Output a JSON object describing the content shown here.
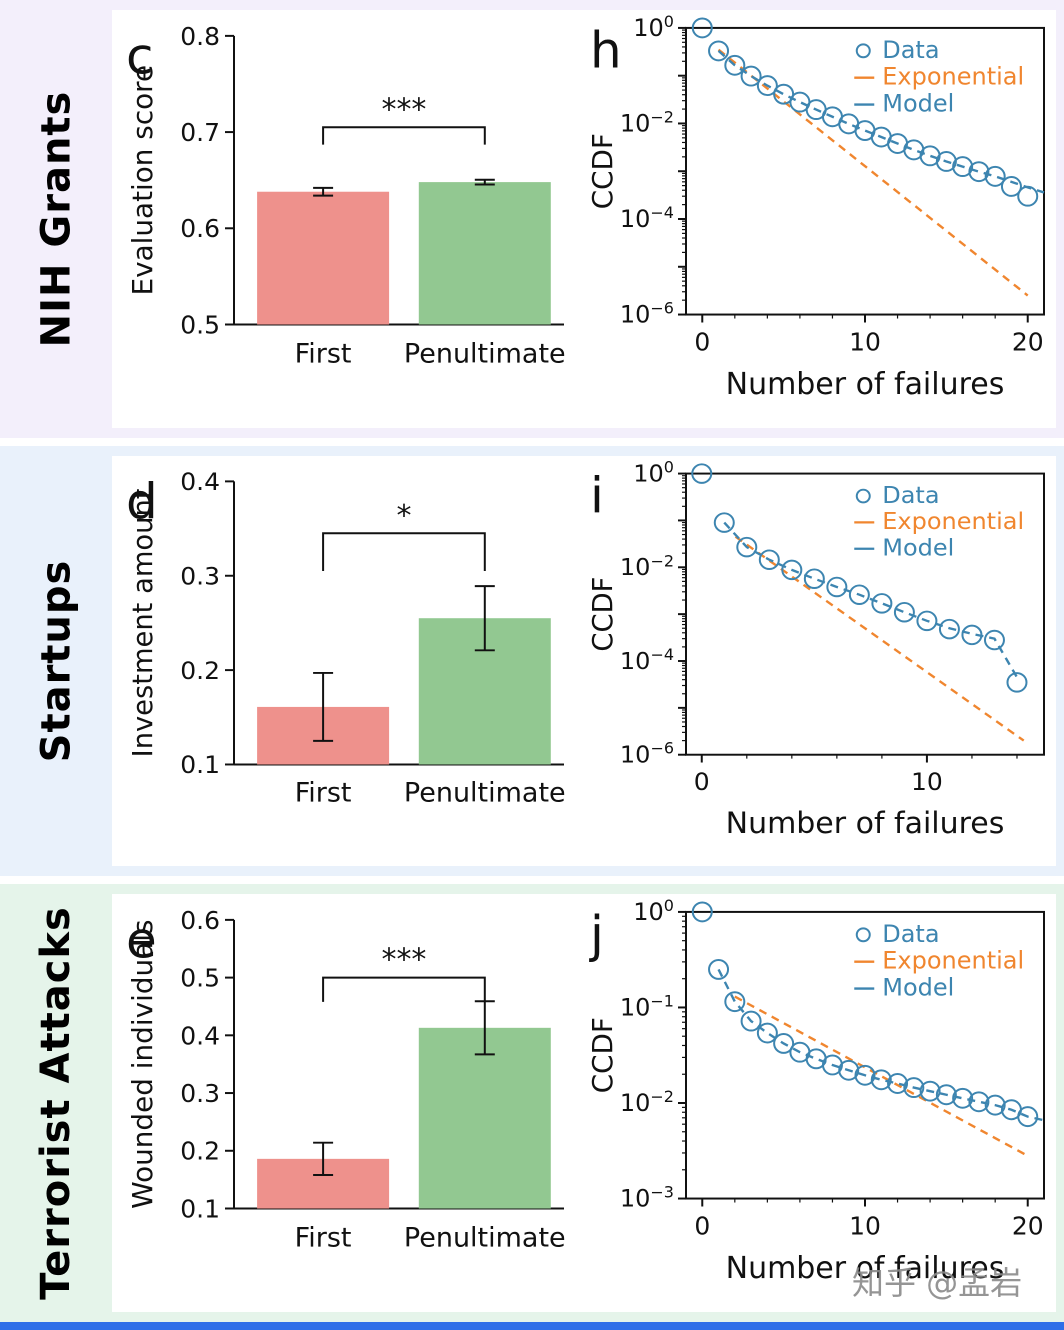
{
  "page": {
    "row_labels": [
      "NIH Grants",
      "Startups",
      "Terrorist Attacks"
    ],
    "row_bg": [
      "#f3effb",
      "#e9f1fb",
      "#e5f4ea"
    ],
    "bottom_bar_color": "#2f6fe8",
    "watermark": "知乎 @孟岩",
    "colors": {
      "bar_first": "#ee918c",
      "bar_penultimate": "#92c891",
      "data_blue": "#3d85b0",
      "exponential_orange": "#f0862f",
      "text": "#111111"
    }
  },
  "chart_data": [
    {
      "id": "c",
      "type": "bar",
      "ylabel": "Evaluation score",
      "ylim": [
        0.5,
        0.8
      ],
      "yticks": [
        0.5,
        0.6,
        0.7,
        0.8
      ],
      "categories": [
        "First",
        "Penultimate"
      ],
      "values": [
        0.638,
        0.648
      ],
      "errors": [
        0.004,
        0.0025
      ],
      "bar_colors": [
        "#ee918c",
        "#92c891"
      ],
      "significance": {
        "label": "***",
        "y": 0.705,
        "drop": 0.018
      }
    },
    {
      "id": "h",
      "type": "line",
      "xlabel": "Number of failures",
      "ylabel": "CCDF",
      "xlim": [
        -1,
        21
      ],
      "xticks": [
        0,
        10,
        20
      ],
      "ylim_exp": [
        -6,
        0
      ],
      "ytick_exps": [
        0,
        -2,
        -4,
        -6
      ],
      "legend": [
        "Data",
        "Exponential",
        "Model"
      ],
      "series": [
        {
          "name": "Data",
          "style": "circles",
          "color": "#3d85b0",
          "x": [
            0,
            1,
            2,
            3,
            4,
            5,
            6,
            7,
            8,
            9,
            10,
            11,
            12,
            13,
            14,
            15,
            16,
            17,
            18,
            19,
            20
          ],
          "y": [
            1.0,
            0.33,
            0.165,
            0.098,
            0.062,
            0.041,
            0.028,
            0.0195,
            0.0138,
            0.0098,
            0.0071,
            0.0052,
            0.0038,
            0.0028,
            0.0021,
            0.0016,
            0.00125,
            0.00098,
            0.00078,
            0.00048,
            0.0003
          ]
        },
        {
          "name": "Exponential",
          "style": "dashed",
          "color": "#f0862f",
          "x": [
            1,
            20
          ],
          "y": [
            0.35,
            2.5e-06
          ]
        },
        {
          "name": "Model",
          "style": "dashed",
          "color": "#3d85b0",
          "x": [
            1,
            2,
            3,
            4,
            5,
            6,
            7,
            8,
            9,
            10,
            11,
            12,
            13,
            14,
            15,
            16,
            17,
            18,
            19,
            20,
            21
          ],
          "y": [
            0.33,
            0.165,
            0.098,
            0.062,
            0.041,
            0.028,
            0.0195,
            0.0138,
            0.0098,
            0.0071,
            0.0052,
            0.0038,
            0.0028,
            0.0021,
            0.0016,
            0.00125,
            0.00098,
            0.00078,
            0.0006,
            0.00046,
            0.00036
          ]
        }
      ]
    },
    {
      "id": "d",
      "type": "bar",
      "ylabel": "Investment amount",
      "ylim": [
        0.1,
        0.4
      ],
      "yticks": [
        0.1,
        0.2,
        0.3,
        0.4
      ],
      "categories": [
        "First",
        "Penultimate"
      ],
      "values": [
        0.161,
        0.255
      ],
      "errors": [
        0.036,
        0.034
      ],
      "bar_colors": [
        "#ee918c",
        "#92c891"
      ],
      "significance": {
        "label": "*",
        "y": 0.345,
        "drop": 0.04
      }
    },
    {
      "id": "i",
      "type": "line",
      "xlabel": "Number of failures",
      "ylabel": "CCDF",
      "xlim": [
        -0.7,
        15.2
      ],
      "xticks": [
        0,
        10
      ],
      "ylim_exp": [
        -6,
        0
      ],
      "ytick_exps": [
        0,
        -2,
        -4,
        -6
      ],
      "legend": [
        "Data",
        "Exponential",
        "Model"
      ],
      "series": [
        {
          "name": "Data",
          "style": "circles",
          "color": "#3d85b0",
          "x": [
            0,
            1,
            2,
            3,
            4,
            5,
            6,
            7,
            8,
            9,
            10,
            11,
            12,
            13,
            14
          ],
          "y": [
            1.0,
            0.09,
            0.027,
            0.0145,
            0.0088,
            0.0057,
            0.0038,
            0.0026,
            0.0017,
            0.0011,
            0.00072,
            0.00048,
            0.00036,
            0.00028,
            3.5e-05
          ]
        },
        {
          "name": "Exponential",
          "style": "dashed",
          "color": "#f0862f",
          "x": [
            1.5,
            14.3
          ],
          "y": [
            0.045,
            2e-06
          ]
        },
        {
          "name": "Model",
          "style": "dashed",
          "color": "#3d85b0",
          "x": [
            1,
            2,
            3,
            4,
            5,
            6,
            7,
            8,
            9,
            10,
            11,
            12,
            13,
            14
          ],
          "y": [
            0.09,
            0.027,
            0.0145,
            0.0088,
            0.0057,
            0.0038,
            0.0026,
            0.0017,
            0.0011,
            0.00072,
            0.0005,
            0.00038,
            0.0003,
            4.5e-05
          ]
        }
      ]
    },
    {
      "id": "e",
      "type": "bar",
      "ylabel": "Wounded individuals",
      "ylim": [
        0.1,
        0.6
      ],
      "yticks": [
        0.1,
        0.2,
        0.3,
        0.4,
        0.5,
        0.6
      ],
      "categories": [
        "First",
        "Penultimate"
      ],
      "values": [
        0.186,
        0.413
      ],
      "errors": [
        0.028,
        0.046
      ],
      "bar_colors": [
        "#ee918c",
        "#92c891"
      ],
      "significance": {
        "label": "***",
        "y": 0.5,
        "drop": 0.042
      }
    },
    {
      "id": "j",
      "type": "line",
      "xlabel": "Number of failures",
      "ylabel": "CCDF",
      "xlim": [
        -1,
        21
      ],
      "xticks": [
        0,
        10,
        20
      ],
      "ylim_exp": [
        -3,
        0
      ],
      "ytick_exps": [
        0,
        -1,
        -2,
        -3
      ],
      "legend": [
        "Data",
        "Exponential",
        "Model"
      ],
      "series": [
        {
          "name": "Data",
          "style": "circles",
          "color": "#3d85b0",
          "x": [
            0,
            1,
            2,
            3,
            4,
            5,
            6,
            7,
            8,
            9,
            10,
            11,
            12,
            13,
            14,
            15,
            16,
            17,
            18,
            19,
            20
          ],
          "y": [
            1.0,
            0.25,
            0.115,
            0.072,
            0.054,
            0.042,
            0.034,
            0.029,
            0.025,
            0.022,
            0.0195,
            0.0175,
            0.016,
            0.0145,
            0.0133,
            0.0122,
            0.0112,
            0.0103,
            0.0095,
            0.0085,
            0.0072
          ]
        },
        {
          "name": "Exponential",
          "style": "dashed",
          "color": "#f0862f",
          "x": [
            2,
            20
          ],
          "y": [
            0.13,
            0.0028
          ]
        },
        {
          "name": "Model",
          "style": "dashed",
          "color": "#3d85b0",
          "x": [
            1,
            2,
            3,
            4,
            5,
            6,
            7,
            8,
            9,
            10,
            11,
            12,
            13,
            14,
            15,
            16,
            17,
            18,
            19,
            20,
            21
          ],
          "y": [
            0.25,
            0.115,
            0.072,
            0.054,
            0.042,
            0.034,
            0.029,
            0.025,
            0.022,
            0.0195,
            0.0175,
            0.016,
            0.0145,
            0.0133,
            0.0122,
            0.0112,
            0.0103,
            0.0095,
            0.0085,
            0.0072,
            0.0066
          ]
        }
      ]
    }
  ]
}
